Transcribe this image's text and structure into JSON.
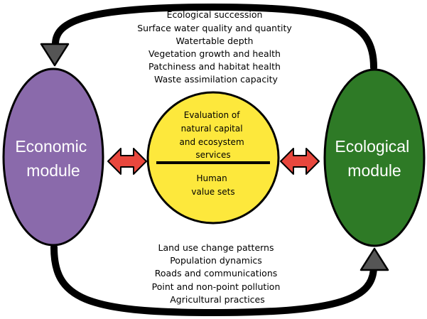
{
  "top_list": [
    "Ecological succession",
    "Surface water quality and quantity",
    "Watertable depth",
    "Vegetation growth and health",
    "Patchiness and habitat health",
    "Waste assimilation capacity"
  ],
  "bottom_list": [
    "Land use change patterns",
    "Population dynamics",
    "Roads and communications",
    "Point and non-point pollution",
    "Agricultural practices"
  ],
  "economic_module": {
    "lines": [
      "Economic",
      "module"
    ],
    "color": "#8a6aab"
  },
  "ecological_module": {
    "lines": [
      "Ecological",
      "module"
    ],
    "color": "#2e7a26"
  },
  "center": {
    "upper_lines": [
      "Evaluation of",
      "natural capital",
      "and ecosystem",
      "services"
    ],
    "lower_lines": [
      "Human",
      "value sets"
    ],
    "color": "#fde83c"
  },
  "colors": {
    "arrow_fill": "#e8473d",
    "triangle_fill": "#555555",
    "loop_stroke": "#000000"
  }
}
